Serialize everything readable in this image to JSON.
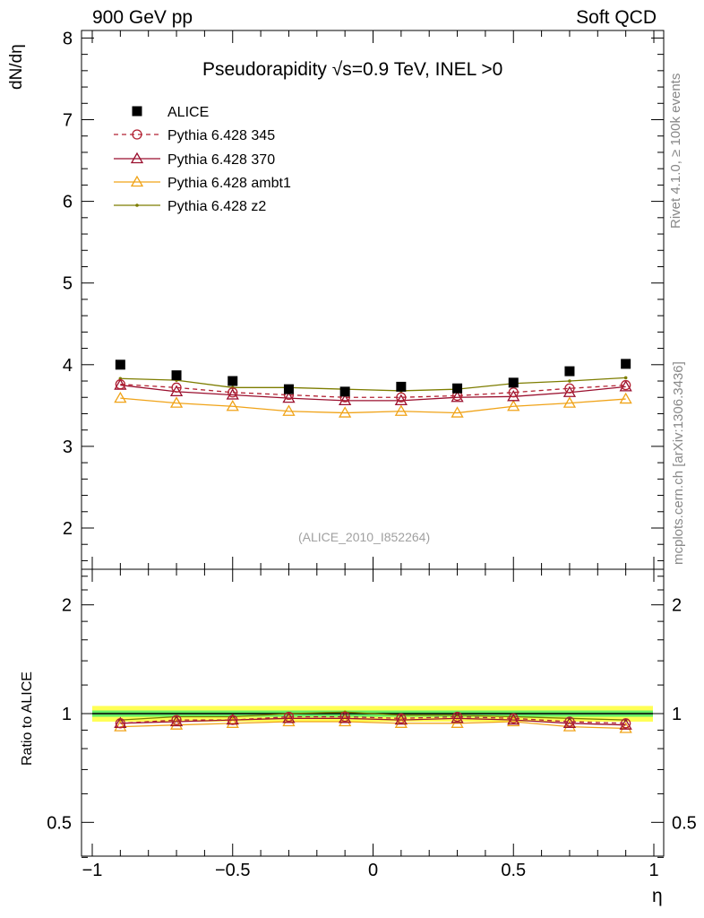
{
  "header": {
    "left": "900 GeV pp",
    "right": "Soft QCD",
    "side_top": "Rivet 4.1.0, ≥ 100k events",
    "side_bottom": "mcplots.cern.ch [arXiv:1306.3436]"
  },
  "chart_data": {
    "type": "line",
    "title": "Pseudorapidity √s=0.9 TeV, INEL >0",
    "watermark": "(ALICE_2010_I852264)",
    "xlabel": "η",
    "ylabel": "dN/dη",
    "ratio_ylabel": "Ratio to ALICE",
    "xlim": [
      -1.0,
      1.0
    ],
    "ylim": [
      1.55,
      8.1
    ],
    "ratio_ylim": [
      0.4,
      2.5
    ],
    "x_ticks": [
      -1,
      -0.5,
      0,
      0.5,
      1
    ],
    "x_tick_labels": [
      "−1",
      "−0.5",
      "0",
      "0.5",
      "1"
    ],
    "y_ticks": [
      2,
      3,
      4,
      5,
      6,
      7,
      8
    ],
    "y_tick_labels": [
      "2",
      "3",
      "4",
      "5",
      "6",
      "7",
      "8"
    ],
    "ratio_ticks": [
      0.5,
      1,
      2
    ],
    "ratio_tick_labels": [
      "0.5",
      "1",
      "2"
    ],
    "x": [
      -0.9,
      -0.7,
      -0.5,
      -0.3,
      -0.1,
      0.1,
      0.3,
      0.5,
      0.7,
      0.9
    ],
    "series": [
      {
        "name": "ALICE",
        "color": "#000000",
        "marker": "square",
        "line": "none",
        "values": [
          4.0,
          3.87,
          3.8,
          3.7,
          3.67,
          3.73,
          3.71,
          3.78,
          3.92,
          4.01
        ],
        "ratio": [
          1,
          1,
          1,
          1,
          1,
          1,
          1,
          1,
          1,
          1
        ]
      },
      {
        "name": "Pythia 6.428 345",
        "color": "#b22233",
        "marker": "open-circle",
        "line": "dashed",
        "values": [
          3.76,
          3.72,
          3.66,
          3.63,
          3.6,
          3.6,
          3.62,
          3.66,
          3.71,
          3.75
        ],
        "ratio": [
          0.94,
          0.96,
          0.96,
          0.98,
          0.98,
          0.97,
          0.98,
          0.97,
          0.95,
          0.94
        ]
      },
      {
        "name": "Pythia 6.428 370",
        "color": "#9a0f2e",
        "marker": "open-triangle",
        "line": "solid",
        "values": [
          3.75,
          3.67,
          3.63,
          3.59,
          3.56,
          3.56,
          3.6,
          3.61,
          3.66,
          3.73
        ],
        "ratio": [
          0.94,
          0.95,
          0.96,
          0.97,
          0.97,
          0.96,
          0.97,
          0.96,
          0.94,
          0.93
        ]
      },
      {
        "name": "Pythia 6.428 ambt1",
        "color": "#f0a318",
        "marker": "open-triangle",
        "line": "solid",
        "values": [
          3.59,
          3.53,
          3.49,
          3.43,
          3.41,
          3.43,
          3.41,
          3.49,
          3.53,
          3.58
        ],
        "ratio": [
          0.92,
          0.93,
          0.94,
          0.95,
          0.95,
          0.94,
          0.94,
          0.95,
          0.92,
          0.91
        ]
      },
      {
        "name": "Pythia 6.428 z2",
        "color": "#7d7d00",
        "marker": "dot",
        "line": "solid",
        "values": [
          3.83,
          3.81,
          3.72,
          3.72,
          3.7,
          3.68,
          3.7,
          3.77,
          3.8,
          3.84
        ],
        "ratio": [
          0.96,
          0.98,
          0.98,
          1.0,
          1.01,
          0.99,
          0.99,
          0.98,
          0.97,
          0.96
        ]
      }
    ],
    "ratio_band": {
      "inner_color": "#66ee66",
      "outer_color": "#ffff55",
      "inner": 0.02,
      "outer": 0.05
    }
  }
}
